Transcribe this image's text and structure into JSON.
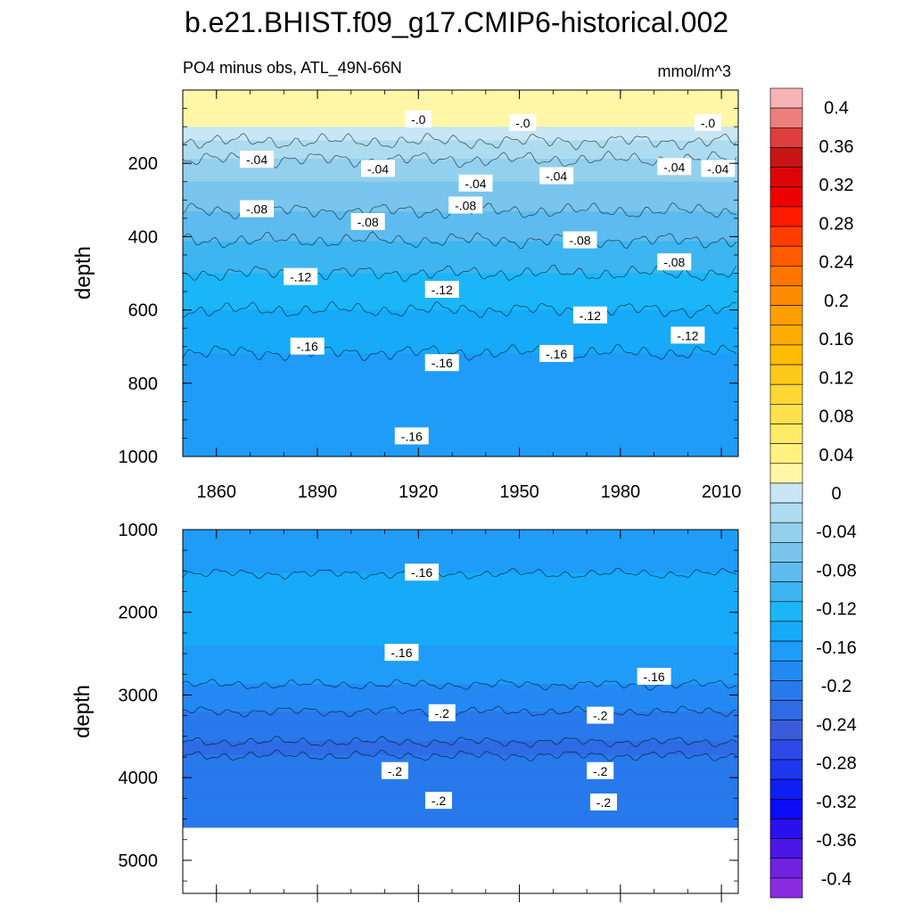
{
  "chart_data": {
    "type": "heatmap",
    "title": "b.e21.BHIST.f09_g17.CMIP6-historical.002",
    "subtitle_left": "PO4 minus obs, ATL_49N-66N",
    "subtitle_right": "mmol/m^3",
    "x_axis": {
      "label": "",
      "range": [
        1850,
        2015
      ],
      "ticks": [
        1860,
        1890,
        1920,
        1950,
        1980,
        2010
      ],
      "tick_labels": [
        "1860",
        "1890",
        "1920",
        "1950",
        "1980",
        "2010"
      ]
    },
    "panels": [
      {
        "name": "upper",
        "ylabel": "depth",
        "depth_range": [
          0,
          1000
        ],
        "y_ticks": [
          200,
          400,
          600,
          800,
          1000
        ],
        "y_tick_labels": [
          "200",
          "400",
          "600",
          "800",
          "1000"
        ],
        "profile": [
          {
            "depth": 0,
            "value": 0.02
          },
          {
            "depth": 40,
            "value": 0.015
          },
          {
            "depth": 100,
            "value": 0.0
          },
          {
            "depth": 160,
            "value": -0.03
          },
          {
            "depth": 250,
            "value": -0.06
          },
          {
            "depth": 350,
            "value": -0.085
          },
          {
            "depth": 450,
            "value": -0.11
          },
          {
            "depth": 550,
            "value": -0.13
          },
          {
            "depth": 650,
            "value": -0.15
          },
          {
            "depth": 750,
            "value": -0.165
          },
          {
            "depth": 900,
            "value": -0.17
          },
          {
            "depth": 1000,
            "value": -0.17
          }
        ],
        "contour_labels": [
          {
            "text": "-.0",
            "year": 1920,
            "depth": 80
          },
          {
            "text": "-.0",
            "year": 1951,
            "depth": 90
          },
          {
            "text": "-.0",
            "year": 2006,
            "depth": 90
          },
          {
            "text": "-.04",
            "year": 1872,
            "depth": 190
          },
          {
            "text": "-.04",
            "year": 1908,
            "depth": 215
          },
          {
            "text": "-.04",
            "year": 1937,
            "depth": 255
          },
          {
            "text": "-.04",
            "year": 1961,
            "depth": 235
          },
          {
            "text": "-.04",
            "year": 1996,
            "depth": 210
          },
          {
            "text": "-.04",
            "year": 2009,
            "depth": 215
          },
          {
            "text": "-.08",
            "year": 1872,
            "depth": 325
          },
          {
            "text": "-.08",
            "year": 1905,
            "depth": 360
          },
          {
            "text": "-.08",
            "year": 1934,
            "depth": 315
          },
          {
            "text": "-.08",
            "year": 1968,
            "depth": 410
          },
          {
            "text": "-.08",
            "year": 1996,
            "depth": 470
          },
          {
            "text": "-.12",
            "year": 1885,
            "depth": 510
          },
          {
            "text": "-.12",
            "year": 1927,
            "depth": 545
          },
          {
            "text": "-.12",
            "year": 1971,
            "depth": 615
          },
          {
            "text": "-.12",
            "year": 2000,
            "depth": 670
          },
          {
            "text": "-.16",
            "year": 1887,
            "depth": 700
          },
          {
            "text": "-.16",
            "year": 1927,
            "depth": 745
          },
          {
            "text": "-.16",
            "year": 1961,
            "depth": 720
          },
          {
            "text": "-.16",
            "year": 1918,
            "depth": 945
          }
        ]
      },
      {
        "name": "lower",
        "ylabel": "depth",
        "depth_range": [
          1000,
          5400
        ],
        "y_ticks": [
          1000,
          2000,
          3000,
          4000,
          5000
        ],
        "y_tick_labels": [
          "1000",
          "2000",
          "3000",
          "4000",
          "5000"
        ],
        "data_bottom_depth": 4600,
        "profile": [
          {
            "depth": 1000,
            "value": -0.17
          },
          {
            "depth": 1800,
            "value": -0.155
          },
          {
            "depth": 2400,
            "value": -0.16
          },
          {
            "depth": 2800,
            "value": -0.175
          },
          {
            "depth": 3100,
            "value": -0.195
          },
          {
            "depth": 3400,
            "value": -0.21
          },
          {
            "depth": 3650,
            "value": -0.225
          },
          {
            "depth": 3900,
            "value": -0.21
          },
          {
            "depth": 4200,
            "value": -0.2
          },
          {
            "depth": 4400,
            "value": -0.205
          },
          {
            "depth": 4600,
            "value": -0.2
          }
        ],
        "contour_labels": [
          {
            "text": "-.16",
            "year": 1921,
            "depth": 1520
          },
          {
            "text": "-.16",
            "year": 1915,
            "depth": 2490
          },
          {
            "text": "-.16",
            "year": 1990,
            "depth": 2780
          },
          {
            "text": "-.2",
            "year": 1927,
            "depth": 3220
          },
          {
            "text": "-.2",
            "year": 1974,
            "depth": 3250
          },
          {
            "text": "-.2",
            "year": 1913,
            "depth": 3920
          },
          {
            "text": "-.2",
            "year": 1974,
            "depth": 3920
          },
          {
            "text": "-.2",
            "year": 1926,
            "depth": 4280
          },
          {
            "text": "-.2",
            "year": 1975,
            "depth": 4300
          }
        ]
      }
    ],
    "colorbar": {
      "ticks": [
        0.4,
        0.36,
        0.32,
        0.28,
        0.24,
        0.2,
        0.16,
        0.12,
        0.08,
        0.04,
        0,
        -0.04,
        -0.08,
        -0.12,
        -0.16,
        -0.2,
        -0.24,
        -0.28,
        -0.32,
        -0.36,
        -0.4
      ],
      "tick_labels": [
        "0.4",
        "0.36",
        "0.32",
        "0.28",
        "0.24",
        "0.2",
        "0.16",
        "0.12",
        "0.08",
        "0.04",
        "0",
        "-0.04",
        "-0.08",
        "-0.12",
        "-0.16",
        "-0.2",
        "-0.24",
        "-0.28",
        "-0.32",
        "-0.36",
        "-0.4"
      ],
      "colors_top_to_bottom": [
        "#f7b3b3",
        "#ee7e7e",
        "#dd3e3e",
        "#c81414",
        "#dc0606",
        "#ee0000",
        "#ff1a00",
        "#ff3c00",
        "#ff5a00",
        "#ff7500",
        "#ff8c00",
        "#ff9e00",
        "#ffab00",
        "#ffbc00",
        "#ffc91a",
        "#ffd733",
        "#ffe14d",
        "#ffea66",
        "#fff27f",
        "#fff7a6",
        "#c8e6f5",
        "#addcf0",
        "#93d0ee",
        "#79c5ee",
        "#5ebbef",
        "#3cb5f0",
        "#1bb6f7",
        "#16aaf8",
        "#1e9cf8",
        "#2389f3",
        "#2879ec",
        "#2f6be4",
        "#3a5bdb",
        "#2e49e6",
        "#1f36ef",
        "#0d1ff2",
        "#0a0cf5",
        "#2a10ec",
        "#4a17e6",
        "#6f22e0",
        "#8a2be2"
      ]
    }
  }
}
